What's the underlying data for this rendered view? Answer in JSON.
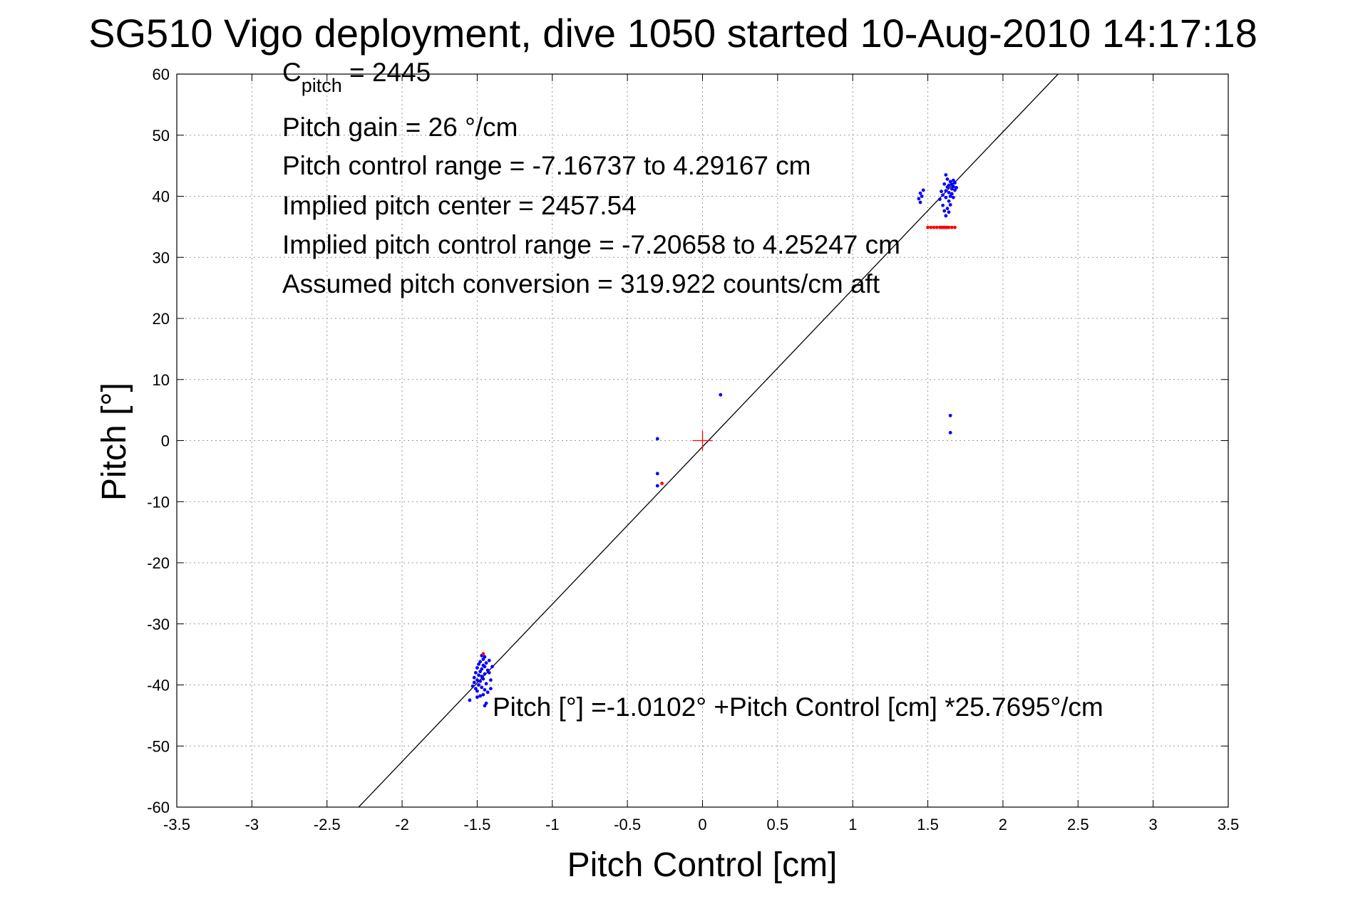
{
  "chart_data": {
    "type": "scatter",
    "title": "SG510 Vigo deployment, dive 1050 started 10-Aug-2010 14:17:18",
    "xlabel": "Pitch Control [cm]",
    "ylabel": "Pitch [°]",
    "xlim": [
      -3.5,
      3.5
    ],
    "ylim": [
      -60,
      60
    ],
    "x_ticks": [
      -3.5,
      -3,
      -2.5,
      -2,
      -1.5,
      -1,
      -0.5,
      0,
      0.5,
      1,
      1.5,
      2,
      2.5,
      3,
      3.5
    ],
    "y_ticks": [
      -60,
      -50,
      -40,
      -30,
      -20,
      -10,
      0,
      10,
      20,
      30,
      40,
      50,
      60
    ],
    "x_tick_labels": [
      "-3.5",
      "-3",
      "-2.5",
      "-2",
      "-1.5",
      "-1",
      "-0.5",
      "0",
      "0.5",
      "1",
      "1.5",
      "2",
      "2.5",
      "3",
      "3.5"
    ],
    "y_tick_labels": [
      "-60",
      "-50",
      "-40",
      "-30",
      "-20",
      "-10",
      "0",
      "10",
      "20",
      "30",
      "40",
      "50",
      "60"
    ],
    "grid": true,
    "colors": {
      "fit_line": "#000000",
      "series_blue": "#0000ff",
      "series_red": "#ff0000",
      "grid": "#999999"
    },
    "fit_line": {
      "intercept": -1.0102,
      "slope": 25.7695
    },
    "center_marker": {
      "x": 0,
      "y": 0,
      "color": "#ff0000"
    },
    "series": [
      {
        "color": "#0000ff",
        "points": [
          [
            -1.55,
            -42.5
          ],
          [
            -1.53,
            -40.2
          ],
          [
            -1.52,
            -39.6
          ],
          [
            -1.52,
            -38.8
          ],
          [
            -1.51,
            -40.6
          ],
          [
            -1.51,
            -38.0
          ],
          [
            -1.5,
            -37.2
          ],
          [
            -1.5,
            -39.2
          ],
          [
            -1.5,
            -41.0
          ],
          [
            -1.49,
            -36.6
          ],
          [
            -1.49,
            -38.4
          ],
          [
            -1.49,
            -40.0
          ],
          [
            -1.48,
            -37.8
          ],
          [
            -1.48,
            -39.4
          ],
          [
            -1.48,
            -36.2
          ],
          [
            -1.47,
            -38.6
          ],
          [
            -1.47,
            -37.4
          ],
          [
            -1.47,
            -40.4
          ],
          [
            -1.46,
            -36.8
          ],
          [
            -1.46,
            -35.8
          ],
          [
            -1.46,
            -39.0
          ],
          [
            -1.46,
            -41.6
          ],
          [
            -1.45,
            -37.0
          ],
          [
            -1.45,
            -38.2
          ],
          [
            -1.45,
            -40.8
          ],
          [
            -1.45,
            -35.4
          ],
          [
            -1.44,
            -36.4
          ],
          [
            -1.44,
            -39.8
          ],
          [
            -1.44,
            -43.0
          ],
          [
            -1.43,
            -37.6
          ],
          [
            -1.43,
            -41.2
          ],
          [
            -1.42,
            -38.0
          ],
          [
            -1.42,
            -36.0
          ],
          [
            -1.41,
            -39.2
          ],
          [
            -1.41,
            -40.6
          ],
          [
            -1.4,
            -37.0
          ],
          [
            -1.45,
            -43.4
          ],
          [
            -1.48,
            -41.8
          ],
          [
            -1.5,
            -42.0
          ],
          [
            -1.47,
            -35.2
          ],
          [
            -0.3,
            0.3
          ],
          [
            -0.3,
            -5.4
          ],
          [
            -0.3,
            -7.4
          ],
          [
            0.12,
            7.5
          ],
          [
            1.65,
            4.1
          ],
          [
            1.65,
            1.3
          ],
          [
            1.44,
            39.6
          ],
          [
            1.45,
            40.5
          ],
          [
            1.46,
            40.0
          ],
          [
            1.47,
            41.0
          ],
          [
            1.45,
            39.0
          ],
          [
            1.58,
            39.5
          ],
          [
            1.59,
            40.8
          ],
          [
            1.6,
            40.2
          ],
          [
            1.6,
            38.5
          ],
          [
            1.61,
            42.0
          ],
          [
            1.61,
            37.6
          ],
          [
            1.62,
            39.8
          ],
          [
            1.62,
            43.5
          ],
          [
            1.62,
            36.8
          ],
          [
            1.63,
            41.5
          ],
          [
            1.63,
            38.0
          ],
          [
            1.63,
            42.8
          ],
          [
            1.64,
            40.6
          ],
          [
            1.64,
            39.2
          ],
          [
            1.64,
            41.8
          ],
          [
            1.65,
            42.4
          ],
          [
            1.65,
            40.0
          ],
          [
            1.65,
            38.6
          ],
          [
            1.66,
            41.2
          ],
          [
            1.66,
            42.0
          ],
          [
            1.66,
            40.4
          ],
          [
            1.67,
            41.6
          ],
          [
            1.67,
            42.6
          ],
          [
            1.67,
            39.8
          ],
          [
            1.68,
            41.0
          ],
          [
            1.68,
            42.2
          ],
          [
            1.69,
            41.4
          ],
          [
            1.62,
            40.9
          ],
          [
            1.64,
            37.4
          ]
        ]
      },
      {
        "color": "#ff0000",
        "points": [
          [
            1.5,
            34.9
          ],
          [
            1.52,
            34.9
          ],
          [
            1.54,
            34.9
          ],
          [
            1.56,
            34.9
          ],
          [
            1.58,
            34.9
          ],
          [
            1.59,
            34.9
          ],
          [
            1.6,
            34.9
          ],
          [
            1.61,
            34.9
          ],
          [
            1.62,
            34.9
          ],
          [
            1.63,
            34.9
          ],
          [
            1.64,
            34.9
          ],
          [
            1.66,
            34.9
          ],
          [
            1.68,
            34.9
          ],
          [
            -1.46,
            -34.9
          ],
          [
            -0.27,
            -7.0
          ]
        ]
      }
    ],
    "annotations": {
      "c_pitch_main": "C",
      "c_pitch_sub": "pitch",
      "c_pitch_value": " = 2445",
      "gain": "Pitch gain = 26 °/cm",
      "control_range": "Pitch control range = -7.16737 to 4.29167 cm",
      "implied_center": "Implied pitch center = 2457.54",
      "implied_range": "Implied pitch control range = -7.20658 to 4.25247 cm",
      "conversion": "Assumed pitch conversion = 319.922 counts/cm aft",
      "fit_equation": "Pitch [°] =-1.0102° +Pitch Control [cm] *25.7695°/cm"
    }
  }
}
